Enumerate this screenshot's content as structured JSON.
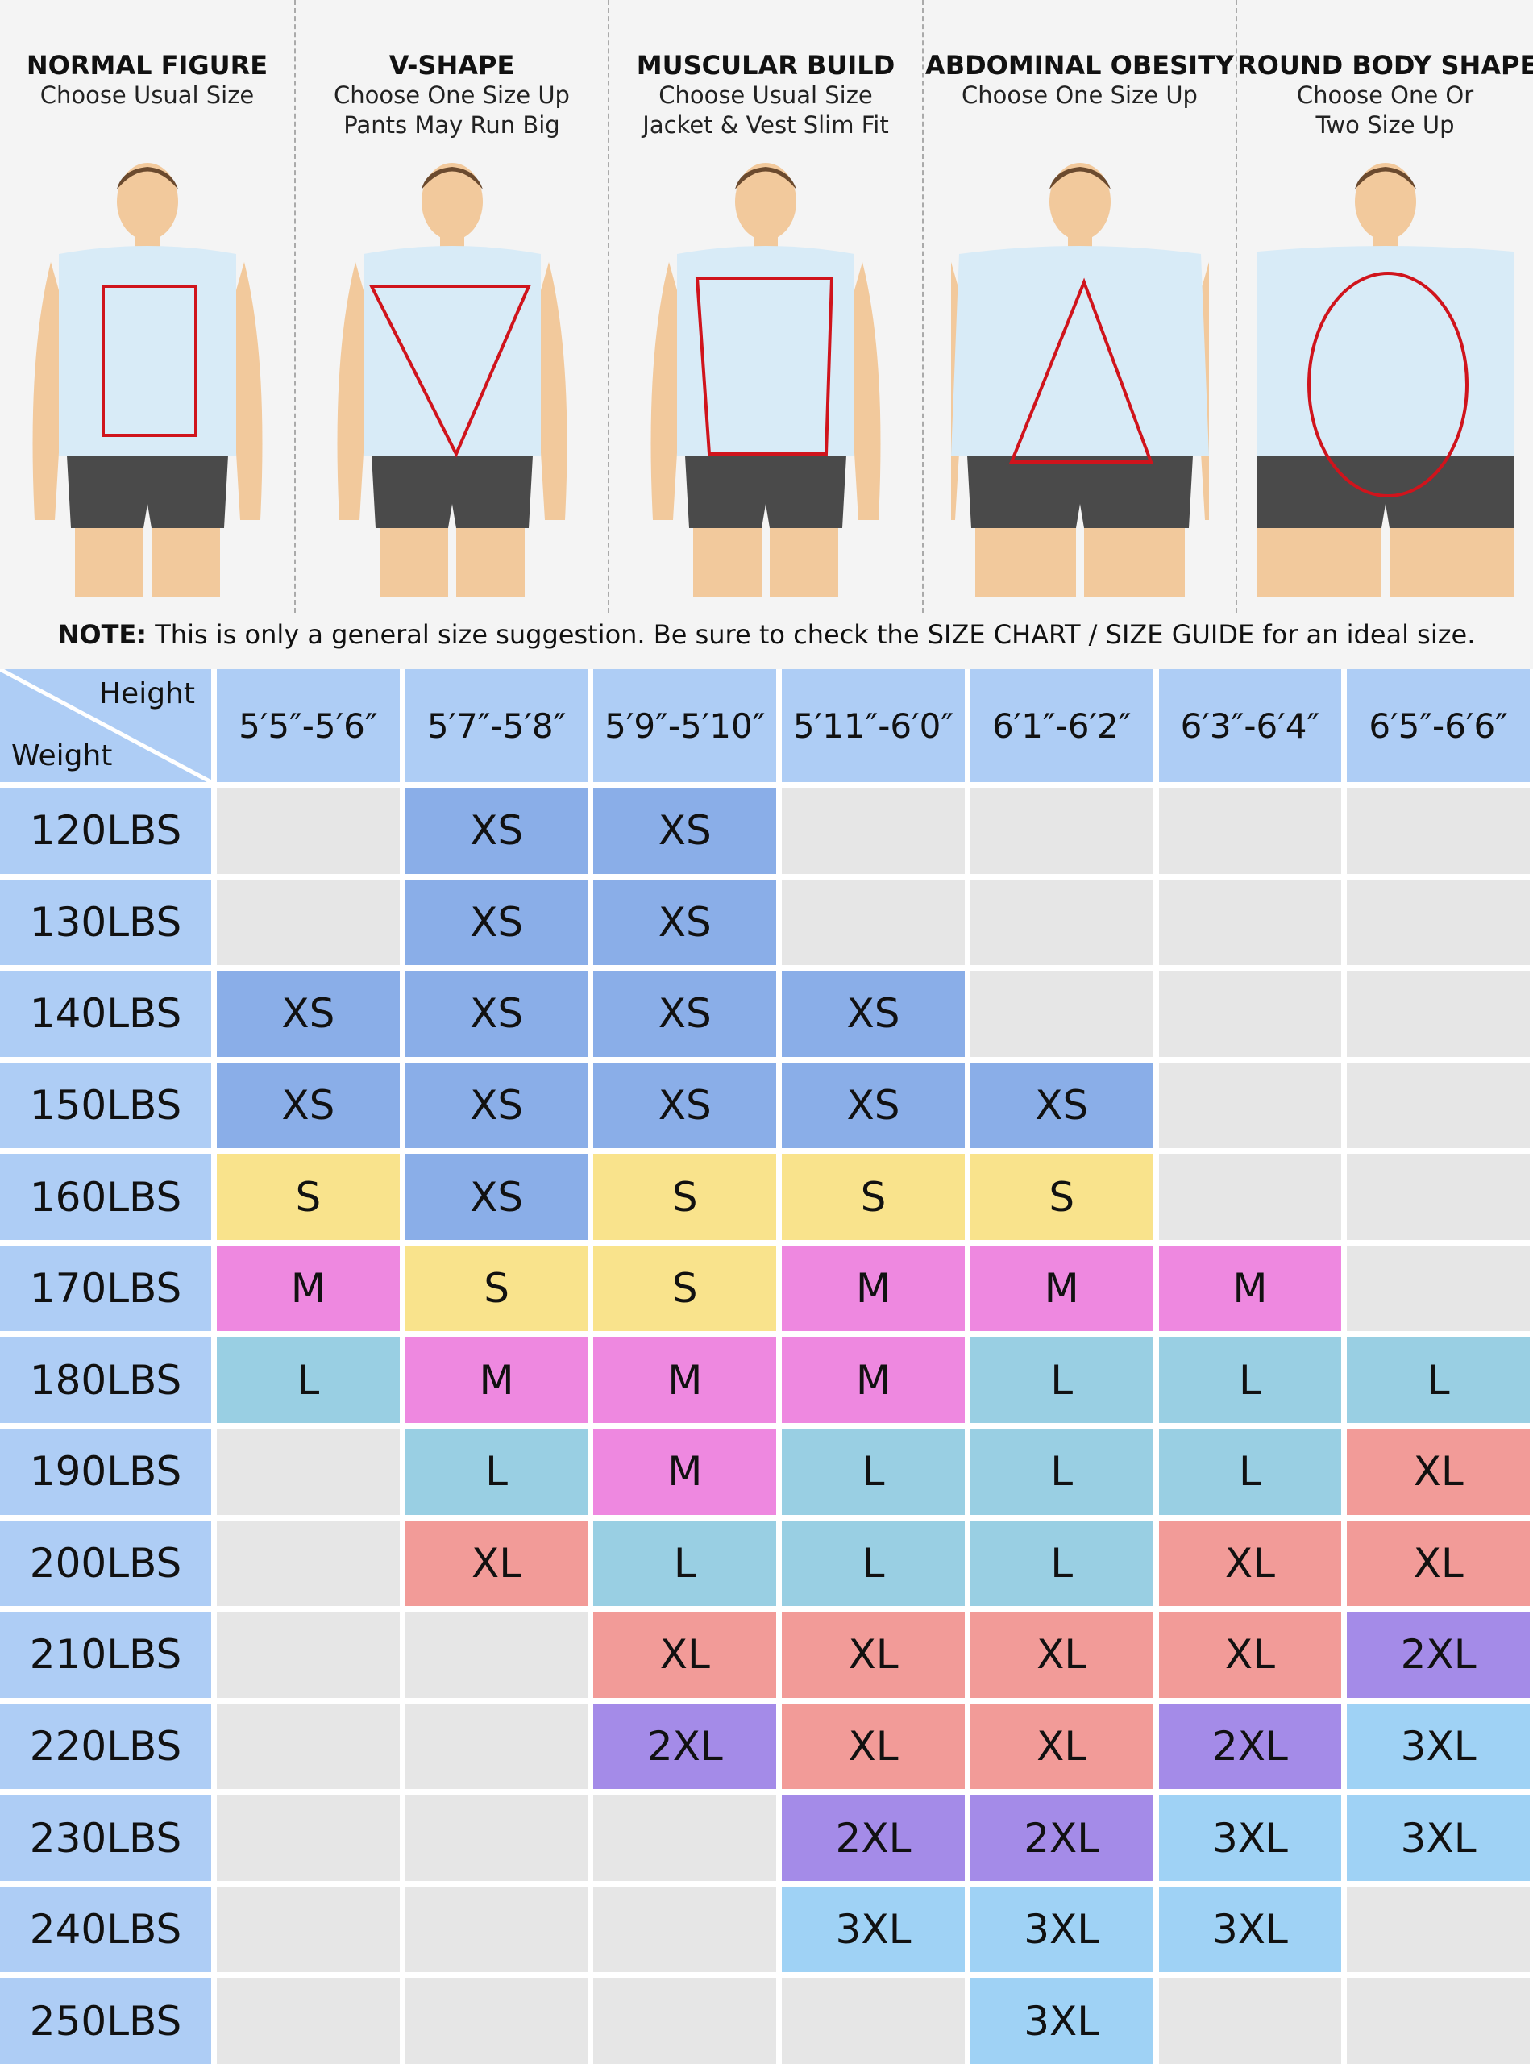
{
  "body_types": [
    {
      "title": "NORMAL FIGURE",
      "lines": [
        "Choose Usual Size"
      ],
      "shape": "rectangle"
    },
    {
      "title": "V-SHAPE",
      "lines": [
        "Choose One Size Up",
        "Pants May Run Big"
      ],
      "shape": "inverted-triangle"
    },
    {
      "title": "MUSCULAR BUILD",
      "lines": [
        "Choose Usual Size",
        "Jacket & Vest Slim Fit"
      ],
      "shape": "trapezoid"
    },
    {
      "title": "ABDOMINAL OBESITY",
      "lines": [
        "Choose One Size Up"
      ],
      "shape": "triangle"
    },
    {
      "title": "ROUND BODY SHAPE",
      "lines": [
        "Choose One Or",
        "Two Size Up"
      ],
      "shape": "oval"
    }
  ],
  "note": {
    "label": "NOTE:",
    "text": " This is only a general size suggestion. Be sure to check the SIZE CHART / SIZE GUIDE for an ideal size."
  },
  "table": {
    "corner_height": "Height",
    "corner_weight": "Weight",
    "heights": [
      "5′5″-5′6″",
      "5′7″-5′8″",
      "5′9″-5′10″",
      "5′11″-6′0″",
      "6′1″-6′2″",
      "6′3″-6′4″",
      "6′5″-6′6″"
    ],
    "rows": [
      {
        "weight": "120LBS",
        "sizes": [
          "",
          "XS",
          "XS",
          "",
          "",
          "",
          ""
        ]
      },
      {
        "weight": "130LBS",
        "sizes": [
          "",
          "XS",
          "XS",
          "",
          "",
          "",
          ""
        ]
      },
      {
        "weight": "140LBS",
        "sizes": [
          "XS",
          "XS",
          "XS",
          "XS",
          "",
          "",
          ""
        ]
      },
      {
        "weight": "150LBS",
        "sizes": [
          "XS",
          "XS",
          "XS",
          "XS",
          "XS",
          "",
          ""
        ]
      },
      {
        "weight": "160LBS",
        "sizes": [
          "S",
          "XS",
          "S",
          "S",
          "S",
          "",
          ""
        ]
      },
      {
        "weight": "170LBS",
        "sizes": [
          "M",
          "S",
          "S",
          "M",
          "M",
          "M",
          ""
        ]
      },
      {
        "weight": "180LBS",
        "sizes": [
          "L",
          "M",
          "M",
          "M",
          "L",
          "L",
          "L"
        ]
      },
      {
        "weight": "190LBS",
        "sizes": [
          "",
          "L",
          "M",
          "L",
          "L",
          "L",
          "XL"
        ]
      },
      {
        "weight": "200LBS",
        "sizes": [
          "",
          "XL",
          "L",
          "L",
          "L",
          "XL",
          "XL"
        ]
      },
      {
        "weight": "210LBS",
        "sizes": [
          "",
          "",
          "XL",
          "XL",
          "XL",
          "XL",
          "2XL"
        ]
      },
      {
        "weight": "220LBS",
        "sizes": [
          "",
          "",
          "2XL",
          "XL",
          "XL",
          "2XL",
          "3XL"
        ]
      },
      {
        "weight": "230LBS",
        "sizes": [
          "",
          "",
          "",
          "2XL",
          "2XL",
          "3XL",
          "3XL"
        ]
      },
      {
        "weight": "240LBS",
        "sizes": [
          "",
          "",
          "",
          "3XL",
          "3XL",
          "3XL",
          ""
        ]
      },
      {
        "weight": "250LBS",
        "sizes": [
          "",
          "",
          "",
          "",
          "3XL",
          "",
          ""
        ]
      }
    ]
  },
  "colors": {
    "header": "#aecdf5",
    "empty": "#e6e6e6",
    "XS": "#8aaee8",
    "S": "#f9e38c",
    "M": "#ee88e0",
    "L": "#99cfe3",
    "XL": "#f29b98",
    "2XL": "#a48be8",
    "3XL": "#9fd2f5",
    "outline": "#d0141c"
  }
}
